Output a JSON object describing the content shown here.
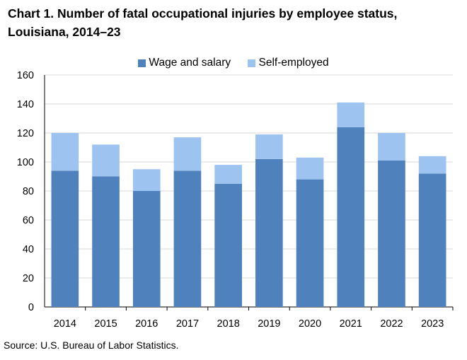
{
  "chart_data": {
    "type": "bar",
    "stacked": true,
    "title": "Chart 1. Number of fatal occupational injuries by employee status, Louisiana, 2014–23",
    "categories": [
      "2014",
      "2015",
      "2016",
      "2017",
      "2018",
      "2019",
      "2020",
      "2021",
      "2022",
      "2023"
    ],
    "series": [
      {
        "name": "Wage and salary",
        "color": "#4f81bd",
        "values": [
          94,
          90,
          80,
          94,
          85,
          102,
          88,
          124,
          101,
          92
        ]
      },
      {
        "name": "Self-employed",
        "color": "#9dc3f0",
        "values": [
          26,
          22,
          15,
          23,
          13,
          17,
          15,
          17,
          19,
          12
        ]
      }
    ],
    "ylim": [
      0,
      160
    ],
    "yticks": [
      0,
      20,
      40,
      60,
      80,
      100,
      120,
      140,
      160
    ],
    "grid": true,
    "legend_position": "top-center",
    "source": "Source: U.S. Bureau of Labor Statistics."
  }
}
